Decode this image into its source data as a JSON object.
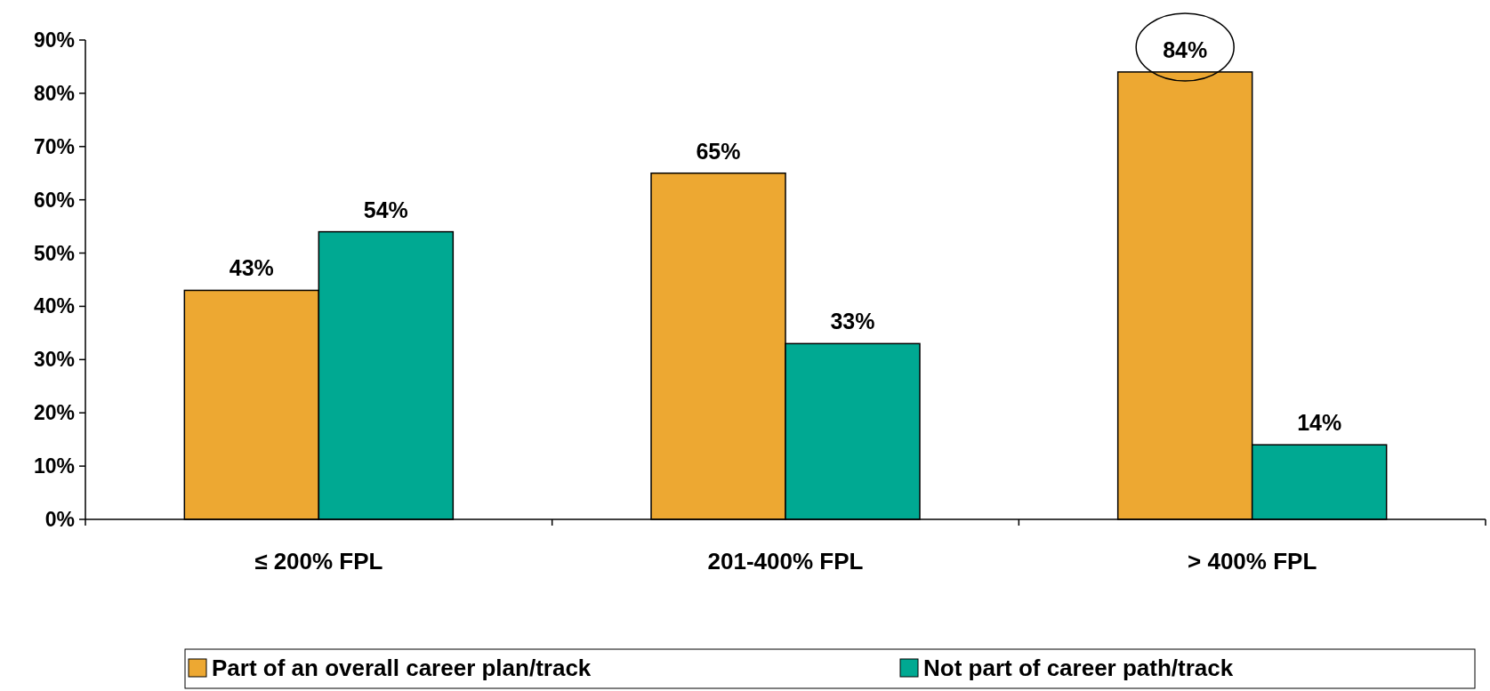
{
  "chart_data": {
    "type": "bar",
    "categories": [
      "≤ 200% FPL",
      "201-400% FPL",
      "> 400% FPL"
    ],
    "series": [
      {
        "name": "Part of an overall career plan/track",
        "color": "#eda832",
        "values": [
          43,
          65,
          84
        ],
        "value_labels": [
          "43%",
          "65%",
          "84%"
        ]
      },
      {
        "name": "Not part of career path/track",
        "color": "#00a992",
        "values": [
          54,
          33,
          14
        ],
        "value_labels": [
          "54%",
          "33%",
          "14%"
        ]
      }
    ],
    "ylim": [
      0,
      90
    ],
    "yticks": [
      {
        "value": 0,
        "label": "0%"
      },
      {
        "value": 10,
        "label": "10%"
      },
      {
        "value": 20,
        "label": "20%"
      },
      {
        "value": 30,
        "label": "30%"
      },
      {
        "value": 40,
        "label": "40%"
      },
      {
        "value": 50,
        "label": "50%"
      },
      {
        "value": 60,
        "label": "60%"
      },
      {
        "value": 70,
        "label": "70%"
      },
      {
        "value": 80,
        "label": "80%"
      },
      {
        "value": 90,
        "label": "90%"
      }
    ],
    "grid": false,
    "legend": "bottom"
  }
}
